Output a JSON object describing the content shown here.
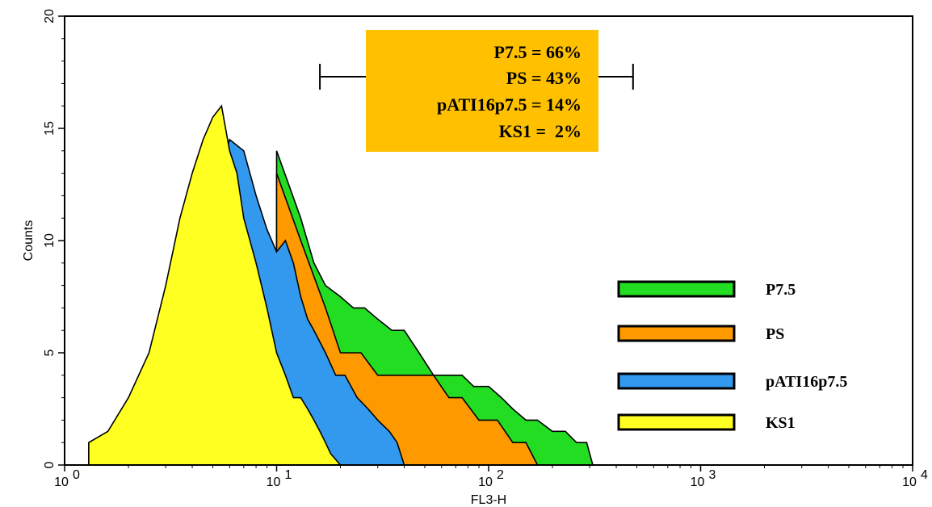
{
  "chart_data": {
    "type": "area",
    "xlabel": "FL3-H",
    "ylabel": "Counts",
    "xscale": "log",
    "xlim": [
      1,
      10000
    ],
    "ylim": [
      0,
      20
    ],
    "grid": false,
    "x_ticks": [
      {
        "value": 1,
        "base": "10",
        "exp": "0"
      },
      {
        "value": 10,
        "base": "10",
        "exp": "1"
      },
      {
        "value": 100,
        "base": "10",
        "exp": "2"
      },
      {
        "value": 1000,
        "base": "10",
        "exp": "3"
      },
      {
        "value": 10000,
        "base": "10",
        "exp": "4"
      }
    ],
    "y_ticks": [
      {
        "value": 0,
        "label": "0"
      },
      {
        "value": 5,
        "label": "5"
      },
      {
        "value": 10,
        "label": "10"
      },
      {
        "value": 15,
        "label": "15"
      },
      {
        "value": 20,
        "label": "20"
      }
    ],
    "gate": {
      "x_start": 16,
      "x_end": 480,
      "y": 17.3
    },
    "annotation_lines": [
      "P7.5 = 66%",
      "PS = 43%",
      "pATI16p7.5 = 14%",
      "KS1 =  2%"
    ],
    "legend_position": "right",
    "series": [
      {
        "name": "P7.5",
        "color": "#22dd22",
        "x": [
          10,
          13,
          15,
          17,
          20,
          23,
          26,
          30,
          35,
          40,
          47,
          55,
          65,
          75,
          85,
          100,
          115,
          130,
          150,
          170,
          200,
          230,
          260,
          290,
          310
        ],
        "y": [
          14,
          11,
          9,
          8,
          7.5,
          7,
          7,
          6.5,
          6,
          6,
          5,
          4,
          4,
          4,
          3.5,
          3.5,
          3,
          2.5,
          2,
          2,
          1.5,
          1.5,
          1,
          1,
          0
        ]
      },
      {
        "name": "PS",
        "color": "#ff9900",
        "x": [
          10,
          13,
          17,
          20,
          25,
          30,
          35,
          40,
          47,
          55,
          65,
          75,
          90,
          110,
          130,
          150,
          170
        ],
        "y": [
          13,
          10,
          7,
          5,
          5,
          4,
          4,
          4,
          4,
          4,
          3,
          3,
          2,
          2,
          1,
          1,
          0
        ]
      },
      {
        "name": "pATI16p7.5",
        "color": "#3399ee",
        "x": [
          1.3,
          2,
          3,
          4,
          5,
          6,
          7,
          8,
          9,
          10,
          11,
          12,
          13,
          14,
          15,
          17,
          19,
          21,
          24,
          27,
          30,
          34,
          37,
          40
        ],
        "y": [
          1,
          2,
          5,
          9,
          12,
          14.5,
          14,
          12,
          10.5,
          9.5,
          10,
          9,
          7.5,
          6.5,
          6,
          5,
          4,
          4,
          3,
          2.5,
          2,
          1.5,
          1,
          0
        ]
      },
      {
        "name": "KS1",
        "color": "#ffff22",
        "x": [
          1.3,
          1.6,
          2,
          2.5,
          3,
          3.5,
          4,
          4.5,
          5,
          5.5,
          6,
          6.5,
          7,
          8,
          9,
          10,
          11,
          12,
          13,
          14,
          15,
          16,
          17,
          18,
          20
        ],
        "y": [
          1,
          1.5,
          3,
          5,
          8,
          11,
          13,
          14.5,
          15.5,
          16,
          14,
          13,
          11,
          9,
          7,
          5,
          4,
          3,
          3,
          2.5,
          2,
          1.5,
          1,
          0.5,
          0
        ]
      }
    ]
  }
}
